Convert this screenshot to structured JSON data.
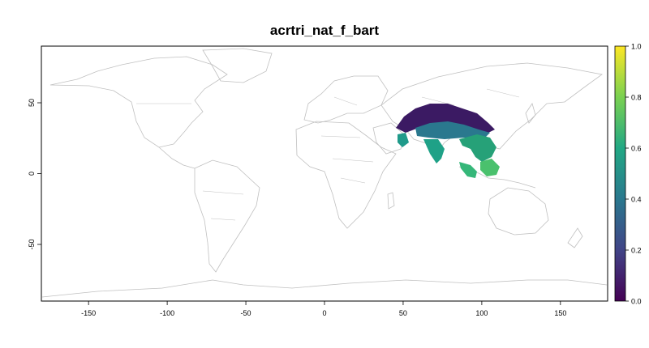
{
  "title": "acrtri_nat_f_bart",
  "map": {
    "projection": "equirectangular",
    "lon_range": [
      -180,
      180
    ],
    "lat_range": [
      -90,
      90
    ],
    "x_ticks": [
      -150,
      -100,
      -50,
      0,
      50,
      100,
      150
    ],
    "y_ticks": [
      -50,
      0,
      50
    ],
    "x_tick_labels": [
      "-150",
      "-100",
      "-50",
      "0",
      "50",
      "100",
      "150"
    ],
    "y_tick_labels": [
      "-50",
      "0",
      "50"
    ],
    "border_color": "#c0c0c0",
    "frame_color": "#000000"
  },
  "legend": {
    "ticks": [
      0.0,
      0.2,
      0.4,
      0.6,
      0.8,
      1.0
    ],
    "tick_labels": [
      "0.0",
      "0.2",
      "0.4",
      "0.6",
      "0.8",
      "1.0"
    ],
    "range": [
      0,
      1
    ],
    "palette": [
      "#440154",
      "#414487",
      "#2a788e",
      "#22a884",
      "#7ad151",
      "#fde725"
    ]
  }
}
